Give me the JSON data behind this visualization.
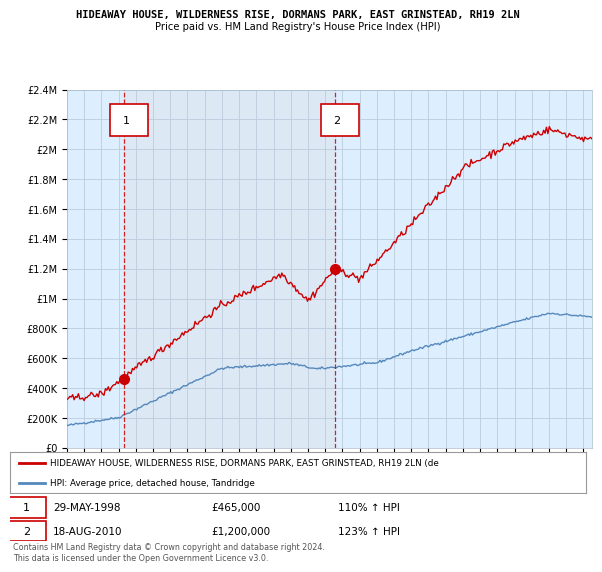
{
  "title1": "HIDEAWAY HOUSE, WILDERNESS RISE, DORMANS PARK, EAST GRINSTEAD, RH19 2LN",
  "title2": "Price paid vs. HM Land Registry's House Price Index (HPI)",
  "hpi_legend": "HPI: Average price, detached house, Tandridge",
  "price_legend": "HIDEAWAY HOUSE, WILDERNESS RISE, DORMANS PARK, EAST GRINSTEAD, RH19 2LN (de",
  "transaction1_date": "29-MAY-1998",
  "transaction1_price": 465000,
  "transaction1_hpi": "110% ↑ HPI",
  "transaction2_date": "18-AUG-2010",
  "transaction2_price": 1200000,
  "transaction2_hpi": "123% ↑ HPI",
  "footnote": "Contains HM Land Registry data © Crown copyright and database right 2024.\nThis data is licensed under the Open Government Licence v3.0.",
  "hpi_color": "#5588bb",
  "price_color": "#cc0000",
  "marker_color": "#cc0000",
  "dashed_color": "#cc0000",
  "shaded_color": "#dde8f5",
  "ylim_min": 0,
  "ylim_max": 2400000,
  "yticks": [
    0,
    200000,
    400000,
    600000,
    800000,
    1000000,
    1200000,
    1400000,
    1600000,
    1800000,
    2000000,
    2200000,
    2400000
  ],
  "xlim_start": 1995.0,
  "xlim_end": 2025.5,
  "background_color": "#ffffff",
  "plot_bg_color": "#ddeeff",
  "grid_color": "#bbccdd"
}
